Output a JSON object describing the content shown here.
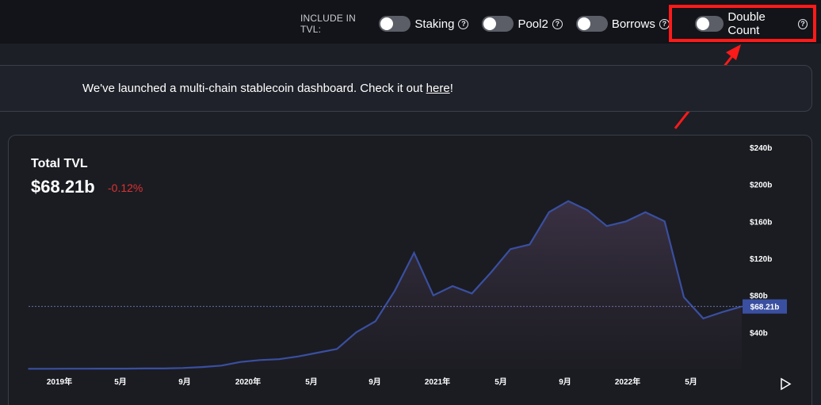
{
  "header": {
    "include_label": "INCLUDE IN TVL:",
    "toggles": [
      {
        "label": "Staking",
        "enabled": false
      },
      {
        "label": "Pool2",
        "enabled": false
      },
      {
        "label": "Borrows",
        "enabled": false
      },
      {
        "label": "Double Count",
        "enabled": false
      }
    ],
    "help_glyph": "?"
  },
  "banner": {
    "text": "We've launched a multi-chain stablecoin dashboard. Check it out ",
    "link_text": "here",
    "suffix": "!"
  },
  "chart": {
    "title": "Total TVL",
    "value": "$68.21b",
    "change": "-0.12%",
    "current_tag": "$68.21b"
  },
  "colors": {
    "line": "#3a4fa0",
    "negative": "#e03131",
    "highlight": "#ff1a1a"
  },
  "chart_data": {
    "type": "area",
    "title": "Total TVL",
    "ylim": [
      0,
      240
    ],
    "yticks": [
      "$240b",
      "$200b",
      "$160b",
      "$120b",
      "$80b",
      "$40b"
    ],
    "ytick_values": [
      240,
      200,
      160,
      120,
      80,
      40
    ],
    "xticks": [
      "2019年",
      "5月",
      "9月",
      "2020年",
      "5月",
      "9月",
      "2021年",
      "5月",
      "9月",
      "2022年",
      "5月"
    ],
    "x": [
      "2019-01",
      "2019-03",
      "2019-05",
      "2019-07",
      "2019-09",
      "2019-11",
      "2020-01",
      "2020-03",
      "2020-05",
      "2020-06",
      "2020-07",
      "2020-08",
      "2020-09",
      "2020-10",
      "2020-11",
      "2020-12",
      "2021-01",
      "2021-02",
      "2021-03",
      "2021-04",
      "2021-05a",
      "2021-05b",
      "2021-06",
      "2021-07",
      "2021-08",
      "2021-09",
      "2021-10",
      "2021-11",
      "2021-12",
      "2022-01",
      "2022-02",
      "2022-03",
      "2022-04",
      "2022-05a",
      "2022-05b",
      "2022-06",
      "2022-07",
      "2022-08"
    ],
    "values": [
      0.6,
      0.6,
      0.7,
      0.7,
      0.8,
      0.8,
      0.9,
      0.9,
      1.5,
      2.5,
      4,
      8,
      10,
      11,
      14,
      18,
      22,
      40,
      52,
      85,
      126,
      80,
      90,
      82,
      105,
      130,
      135,
      170,
      182,
      172,
      155,
      160,
      170,
      160,
      78,
      55,
      62,
      68
    ]
  },
  "icons": {
    "help": "question-circle-icon",
    "play": "play-icon"
  }
}
